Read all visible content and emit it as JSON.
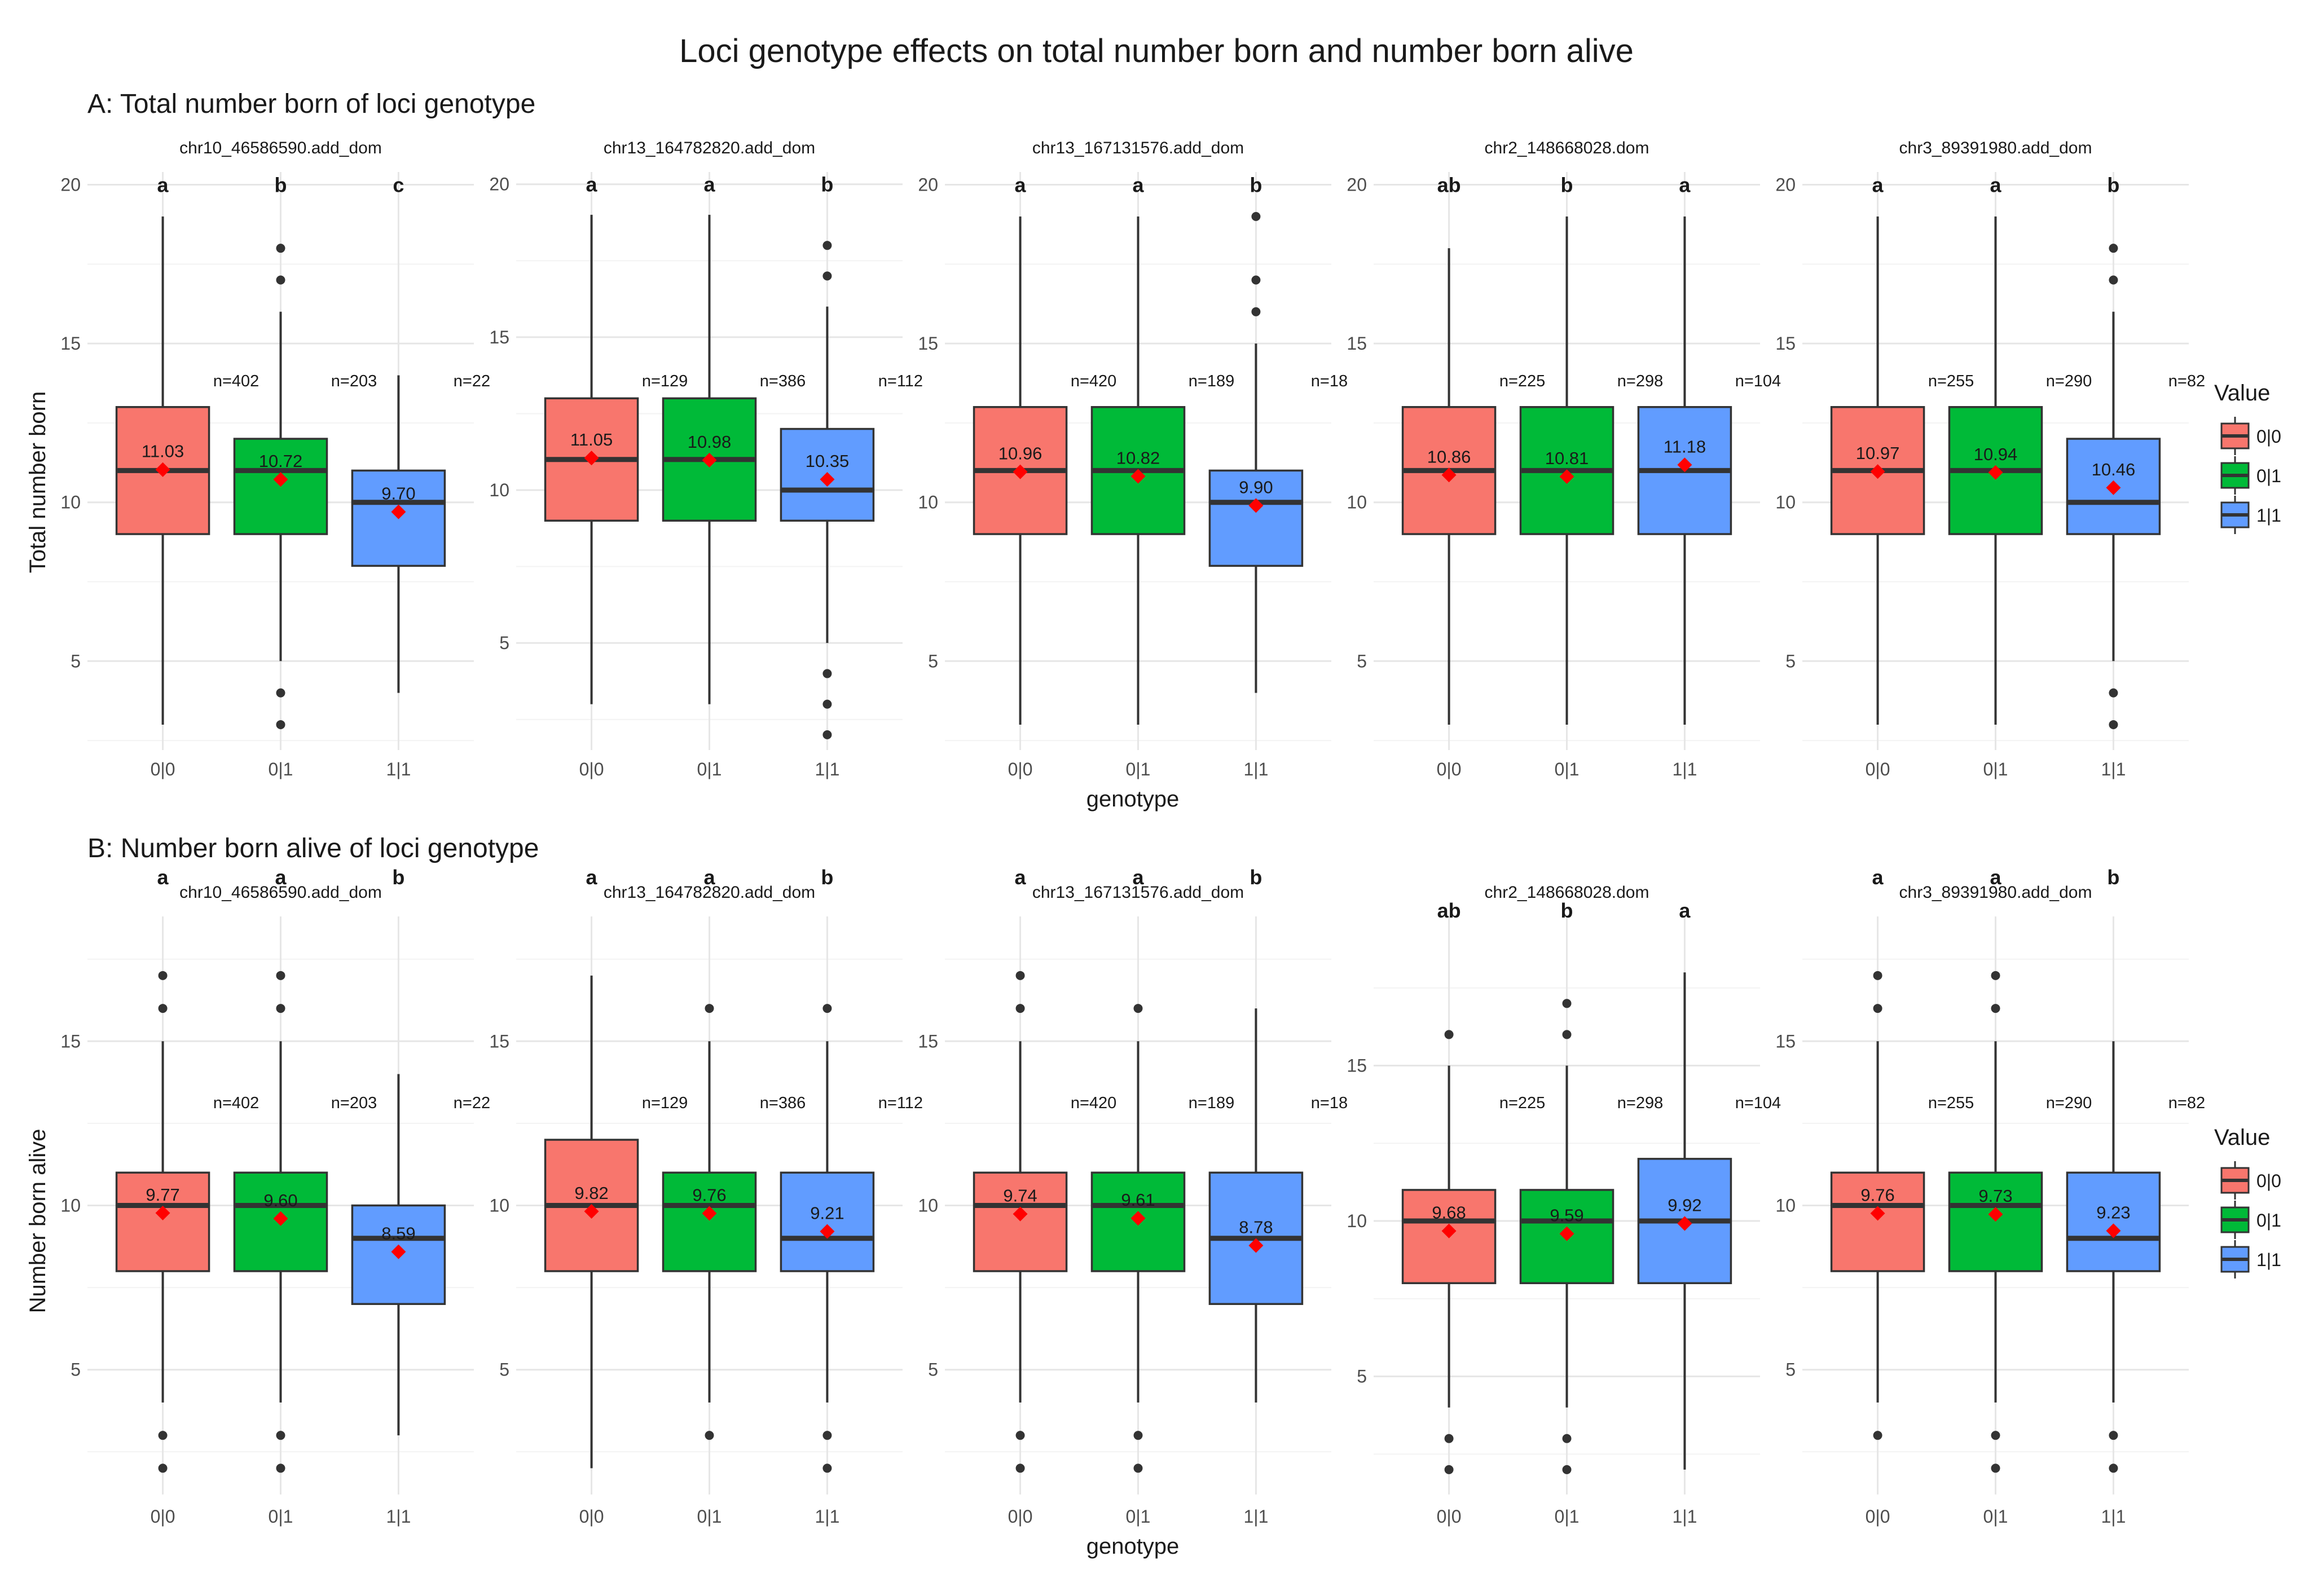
{
  "title": "Loci genotype effects on total number born and number born alive",
  "xlabel": "genotype",
  "legend": {
    "title": "Value",
    "entries": [
      "0|0",
      "0|1",
      "1|1"
    ],
    "colors": [
      "#F8766D",
      "#00BA38",
      "#619CFF"
    ]
  },
  "categories": [
    "0|0",
    "0|1",
    "1|1"
  ],
  "chart_data": [
    {
      "type": "box",
      "title": "A: Total number born of loci genotype",
      "ylabel": "Total number born",
      "facets": [
        {
          "name": "chr10_46586590.add_dom",
          "ylim": [
            2.2,
            20.4
          ],
          "yticks": [
            5,
            10,
            15,
            20
          ],
          "groups": [
            {
              "genotype": "0|0",
              "letter": "a",
              "n": "n=402",
              "mean": 11.03,
              "mean_label": "11.03",
              "min": 3,
              "q1": 9,
              "median": 11,
              "q3": 13,
              "max": 19,
              "outliers": []
            },
            {
              "genotype": "0|1",
              "letter": "b",
              "n": "n=203",
              "mean": 10.72,
              "mean_label": "10.72",
              "min": 5,
              "q1": 9,
              "median": 11,
              "q3": 12,
              "max": 16,
              "outliers": [
                18,
                17,
                4,
                3
              ]
            },
            {
              "genotype": "1|1",
              "letter": "c",
              "n": "n=22",
              "mean": 9.7,
              "mean_label": "9.70",
              "min": 4,
              "q1": 8,
              "median": 10,
              "q3": 11,
              "max": 14,
              "outliers": []
            }
          ]
        },
        {
          "name": "chr13_164782820.add_dom",
          "ylim": [
            1.5,
            20.4
          ],
          "yticks": [
            5,
            10,
            15,
            20
          ],
          "groups": [
            {
              "genotype": "0|0",
              "letter": "a",
              "n": "n=129",
              "mean": 11.05,
              "mean_label": "11.05",
              "min": 3,
              "q1": 9,
              "median": 11,
              "q3": 13,
              "max": 19,
              "outliers": []
            },
            {
              "genotype": "0|1",
              "letter": "a",
              "n": "n=386",
              "mean": 10.98,
              "mean_label": "10.98",
              "min": 3,
              "q1": 9,
              "median": 11,
              "q3": 13,
              "max": 19,
              "outliers": []
            },
            {
              "genotype": "1|1",
              "letter": "b",
              "n": "n=112",
              "mean": 10.35,
              "mean_label": "10.35",
              "min": 5,
              "q1": 9,
              "median": 10,
              "q3": 12,
              "max": 16,
              "outliers": [
                18,
                17,
                4,
                3,
                2
              ]
            }
          ]
        },
        {
          "name": "chr13_167131576.add_dom",
          "ylim": [
            2.2,
            20.4
          ],
          "yticks": [
            5,
            10,
            15,
            20
          ],
          "groups": [
            {
              "genotype": "0|0",
              "letter": "a",
              "n": "n=420",
              "mean": 10.96,
              "mean_label": "10.96",
              "min": 3,
              "q1": 9,
              "median": 11,
              "q3": 13,
              "max": 19,
              "outliers": []
            },
            {
              "genotype": "0|1",
              "letter": "a",
              "n": "n=189",
              "mean": 10.82,
              "mean_label": "10.82",
              "min": 3,
              "q1": 9,
              "median": 11,
              "q3": 13,
              "max": 19,
              "outliers": []
            },
            {
              "genotype": "1|1",
              "letter": "b",
              "n": "n=18",
              "mean": 9.9,
              "mean_label": "9.90",
              "min": 4,
              "q1": 8,
              "median": 10,
              "q3": 11,
              "max": 15,
              "outliers": [
                19,
                17,
                16
              ]
            }
          ]
        },
        {
          "name": "chr2_148668028.dom",
          "ylim": [
            2.2,
            20.4
          ],
          "yticks": [
            5,
            10,
            15,
            20
          ],
          "groups": [
            {
              "genotype": "0|0",
              "letter": "ab",
              "n": "n=225",
              "mean": 10.86,
              "mean_label": "10.86",
              "min": 3,
              "q1": 9,
              "median": 11,
              "q3": 13,
              "max": 18,
              "outliers": []
            },
            {
              "genotype": "0|1",
              "letter": "b",
              "n": "n=298",
              "mean": 10.81,
              "mean_label": "10.81",
              "min": 3,
              "q1": 9,
              "median": 11,
              "q3": 13,
              "max": 19,
              "outliers": []
            },
            {
              "genotype": "1|1",
              "letter": "a",
              "n": "n=104",
              "mean": 11.18,
              "mean_label": "11.18",
              "min": 3,
              "q1": 9,
              "median": 11,
              "q3": 13,
              "max": 19,
              "outliers": []
            }
          ]
        },
        {
          "name": "chr3_89391980.add_dom",
          "ylim": [
            2.2,
            20.4
          ],
          "yticks": [
            5,
            10,
            15,
            20
          ],
          "groups": [
            {
              "genotype": "0|0",
              "letter": "a",
              "n": "n=255",
              "mean": 10.97,
              "mean_label": "10.97",
              "min": 3,
              "q1": 9,
              "median": 11,
              "q3": 13,
              "max": 19,
              "outliers": []
            },
            {
              "genotype": "0|1",
              "letter": "a",
              "n": "n=290",
              "mean": 10.94,
              "mean_label": "10.94",
              "min": 3,
              "q1": 9,
              "median": 11,
              "q3": 13,
              "max": 19,
              "outliers": []
            },
            {
              "genotype": "1|1",
              "letter": "b",
              "n": "n=82",
              "mean": 10.46,
              "mean_label": "10.46",
              "min": 5,
              "q1": 9,
              "median": 10,
              "q3": 12,
              "max": 16,
              "outliers": [
                18,
                17,
                4,
                3
              ]
            }
          ]
        }
      ]
    },
    {
      "type": "box",
      "title": "B: Number born alive of loci genotype",
      "ylabel": "Number born alive",
      "facets": [
        {
          "name": "chr10_46586590.add_dom",
          "ylim": [
            1.2,
            18.8
          ],
          "yticks": [
            5,
            10,
            15
          ],
          "groups": [
            {
              "genotype": "0|0",
              "letter": "a",
              "n": "n=402",
              "mean": 9.77,
              "mean_label": "9.77",
              "min": 4,
              "q1": 8,
              "median": 10,
              "q3": 11,
              "max": 15,
              "outliers": [
                17,
                16,
                3,
                2
              ]
            },
            {
              "genotype": "0|1",
              "letter": "a",
              "n": "n=203",
              "mean": 9.6,
              "mean_label": "9.60",
              "min": 4,
              "q1": 8,
              "median": 10,
              "q3": 11,
              "max": 15,
              "outliers": [
                17,
                16,
                3,
                2
              ]
            },
            {
              "genotype": "1|1",
              "letter": "b",
              "n": "n=22",
              "mean": 8.59,
              "mean_label": "8.59",
              "min": 3,
              "q1": 7,
              "median": 9,
              "q3": 10,
              "max": 14,
              "outliers": []
            }
          ]
        },
        {
          "name": "chr13_164782820.add_dom",
          "ylim": [
            1.2,
            18.8
          ],
          "yticks": [
            5,
            10,
            15
          ],
          "groups": [
            {
              "genotype": "0|0",
              "letter": "a",
              "n": "n=129",
              "mean": 9.82,
              "mean_label": "9.82",
              "min": 2,
              "q1": 8,
              "median": 10,
              "q3": 12,
              "max": 17,
              "outliers": []
            },
            {
              "genotype": "0|1",
              "letter": "a",
              "n": "n=386",
              "mean": 9.76,
              "mean_label": "9.76",
              "min": 4,
              "q1": 8,
              "median": 10,
              "q3": 11,
              "max": 15,
              "outliers": [
                16,
                3
              ]
            },
            {
              "genotype": "1|1",
              "letter": "b",
              "n": "n=112",
              "mean": 9.21,
              "mean_label": "9.21",
              "min": 4,
              "q1": 8,
              "median": 9,
              "q3": 11,
              "max": 15,
              "outliers": [
                16,
                3,
                2
              ]
            }
          ]
        },
        {
          "name": "chr13_167131576.add_dom",
          "ylim": [
            1.2,
            18.8
          ],
          "yticks": [
            5,
            10,
            15
          ],
          "groups": [
            {
              "genotype": "0|0",
              "letter": "a",
              "n": "n=420",
              "mean": 9.74,
              "mean_label": "9.74",
              "min": 4,
              "q1": 8,
              "median": 10,
              "q3": 11,
              "max": 15,
              "outliers": [
                17,
                16,
                3,
                2
              ]
            },
            {
              "genotype": "0|1",
              "letter": "a",
              "n": "n=189",
              "mean": 9.61,
              "mean_label": "9.61",
              "min": 4,
              "q1": 8,
              "median": 10,
              "q3": 11,
              "max": 15,
              "outliers": [
                16,
                3,
                2
              ]
            },
            {
              "genotype": "1|1",
              "letter": "b",
              "n": "n=18",
              "mean": 8.78,
              "mean_label": "8.78",
              "min": 4,
              "q1": 7,
              "median": 9,
              "q3": 11,
              "max": 16,
              "outliers": []
            }
          ]
        },
        {
          "name": "chr2_148668028.dom",
          "ylim": [
            1.2,
            19.8
          ],
          "yticks": [
            5,
            10,
            15
          ],
          "groups": [
            {
              "genotype": "0|0",
              "letter": "ab",
              "n": "n=225",
              "mean": 9.68,
              "mean_label": "9.68",
              "min": 4,
              "q1": 8,
              "median": 10,
              "q3": 11,
              "max": 15,
              "outliers": [
                16,
                3,
                2
              ]
            },
            {
              "genotype": "0|1",
              "letter": "b",
              "n": "n=298",
              "mean": 9.59,
              "mean_label": "9.59",
              "min": 4,
              "q1": 8,
              "median": 10,
              "q3": 11,
              "max": 15,
              "outliers": [
                17,
                16,
                3,
                2
              ]
            },
            {
              "genotype": "1|1",
              "letter": "a",
              "n": "n=104",
              "mean": 9.92,
              "mean_label": "9.92",
              "min": 2,
              "q1": 8,
              "median": 10,
              "q3": 12,
              "max": 18,
              "outliers": []
            }
          ]
        },
        {
          "name": "chr3_89391980.add_dom",
          "ylim": [
            1.2,
            18.8
          ],
          "yticks": [
            5,
            10,
            15
          ],
          "groups": [
            {
              "genotype": "0|0",
              "letter": "a",
              "n": "n=255",
              "mean": 9.76,
              "mean_label": "9.76",
              "min": 4,
              "q1": 8,
              "median": 10,
              "q3": 11,
              "max": 15,
              "outliers": [
                17,
                16,
                3
              ]
            },
            {
              "genotype": "0|1",
              "letter": "a",
              "n": "n=290",
              "mean": 9.73,
              "mean_label": "9.73",
              "min": 4,
              "q1": 8,
              "median": 10,
              "q3": 11,
              "max": 15,
              "outliers": [
                17,
                16,
                3,
                2
              ]
            },
            {
              "genotype": "1|1",
              "letter": "b",
              "n": "n=82",
              "mean": 9.23,
              "mean_label": "9.23",
              "min": 4,
              "q1": 8,
              "median": 9,
              "q3": 11,
              "max": 15,
              "outliers": [
                3,
                2
              ]
            }
          ]
        }
      ]
    }
  ]
}
